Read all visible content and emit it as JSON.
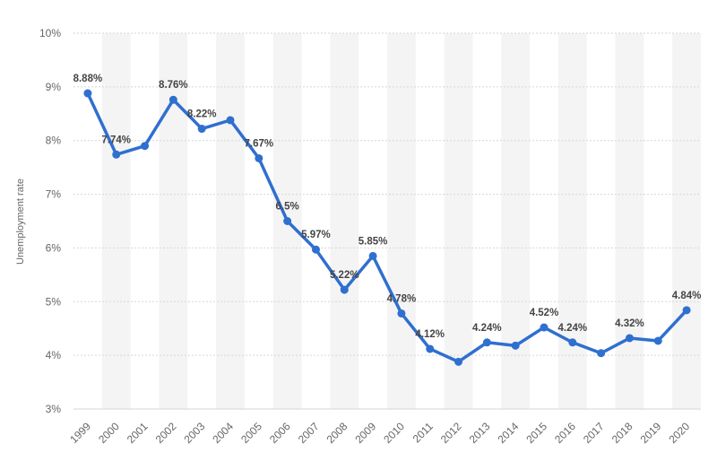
{
  "chart_data": {
    "type": "line",
    "title": "",
    "xlabel": "",
    "ylabel": "Unemployment rate",
    "ylim": [
      3,
      10
    ],
    "y_ticks": [
      "3%",
      "4%",
      "5%",
      "6%",
      "7%",
      "8%",
      "9%",
      "10%"
    ],
    "grid": true,
    "series_color": "#2f6fd0",
    "band_color": "#f4f4f4",
    "categories": [
      "1999",
      "2000",
      "2001",
      "2002",
      "2003",
      "2004",
      "2005",
      "2006",
      "2007",
      "2008",
      "2009",
      "2010",
      "2011",
      "2012",
      "2013",
      "2014",
      "2015",
      "2016",
      "2017",
      "2018",
      "2019",
      "2020"
    ],
    "series": [
      {
        "values": [
          8.88,
          7.74,
          7.9,
          8.76,
          8.22,
          8.38,
          7.67,
          6.5,
          5.97,
          5.22,
          5.85,
          4.78,
          4.12,
          3.88,
          4.24,
          4.18,
          4.52,
          4.24,
          4.04,
          4.32,
          4.27,
          4.84
        ],
        "labels": [
          "8.88%",
          "7.74%",
          "",
          "8.76%",
          "8.22%",
          "",
          "7.67%",
          "6.5%",
          "5.97%",
          "5.22%",
          "5.85%",
          "4.78%",
          "4.12%",
          "",
          "4.24%",
          "",
          "4.52%",
          "4.24%",
          "",
          "4.32%",
          "",
          "4.84%"
        ]
      }
    ]
  }
}
